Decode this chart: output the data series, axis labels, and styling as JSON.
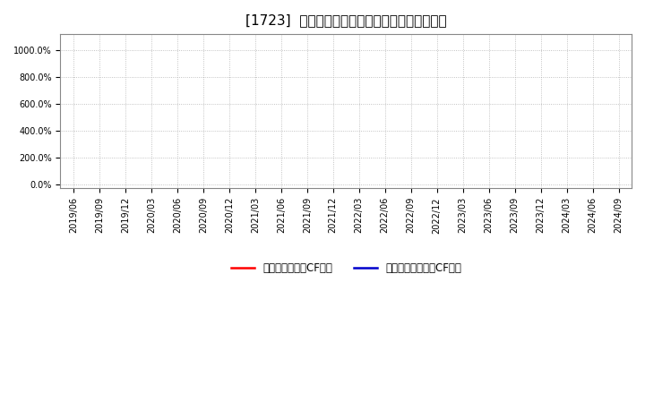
{
  "title": "[1723]  有利子負債キャッシュフロー比率の推移",
  "background_color": "#ffffff",
  "plot_bg_color": "#ffffff",
  "grid_color": "#aaaaaa",
  "yticks": [
    0,
    200,
    400,
    600,
    800,
    1000
  ],
  "ytick_labels": [
    "0.0%",
    "200.0%",
    "400.0%",
    "600.0%",
    "800.0%",
    "1000.0%"
  ],
  "ylim": [
    -30,
    1120
  ],
  "x_dates": [
    "2019/06",
    "2019/09",
    "2019/12",
    "2020/03",
    "2020/06",
    "2020/09",
    "2020/12",
    "2021/03",
    "2021/06",
    "2021/09",
    "2021/12",
    "2022/03",
    "2022/06",
    "2022/09",
    "2022/12",
    "2023/03",
    "2023/06",
    "2023/09",
    "2023/12",
    "2024/03",
    "2024/06",
    "2024/09"
  ],
  "series_operating": [],
  "series_free": [],
  "line_color_operating": "#ff0000",
  "line_color_free": "#0000cc",
  "legend_operating": "有利子負債営業CF比率",
  "legend_free": "有利子負債フリーCF比率",
  "title_fontsize": 11,
  "tick_fontsize": 7,
  "legend_fontsize": 8.5,
  "fig_width": 7.2,
  "fig_height": 4.4,
  "dpi": 100
}
